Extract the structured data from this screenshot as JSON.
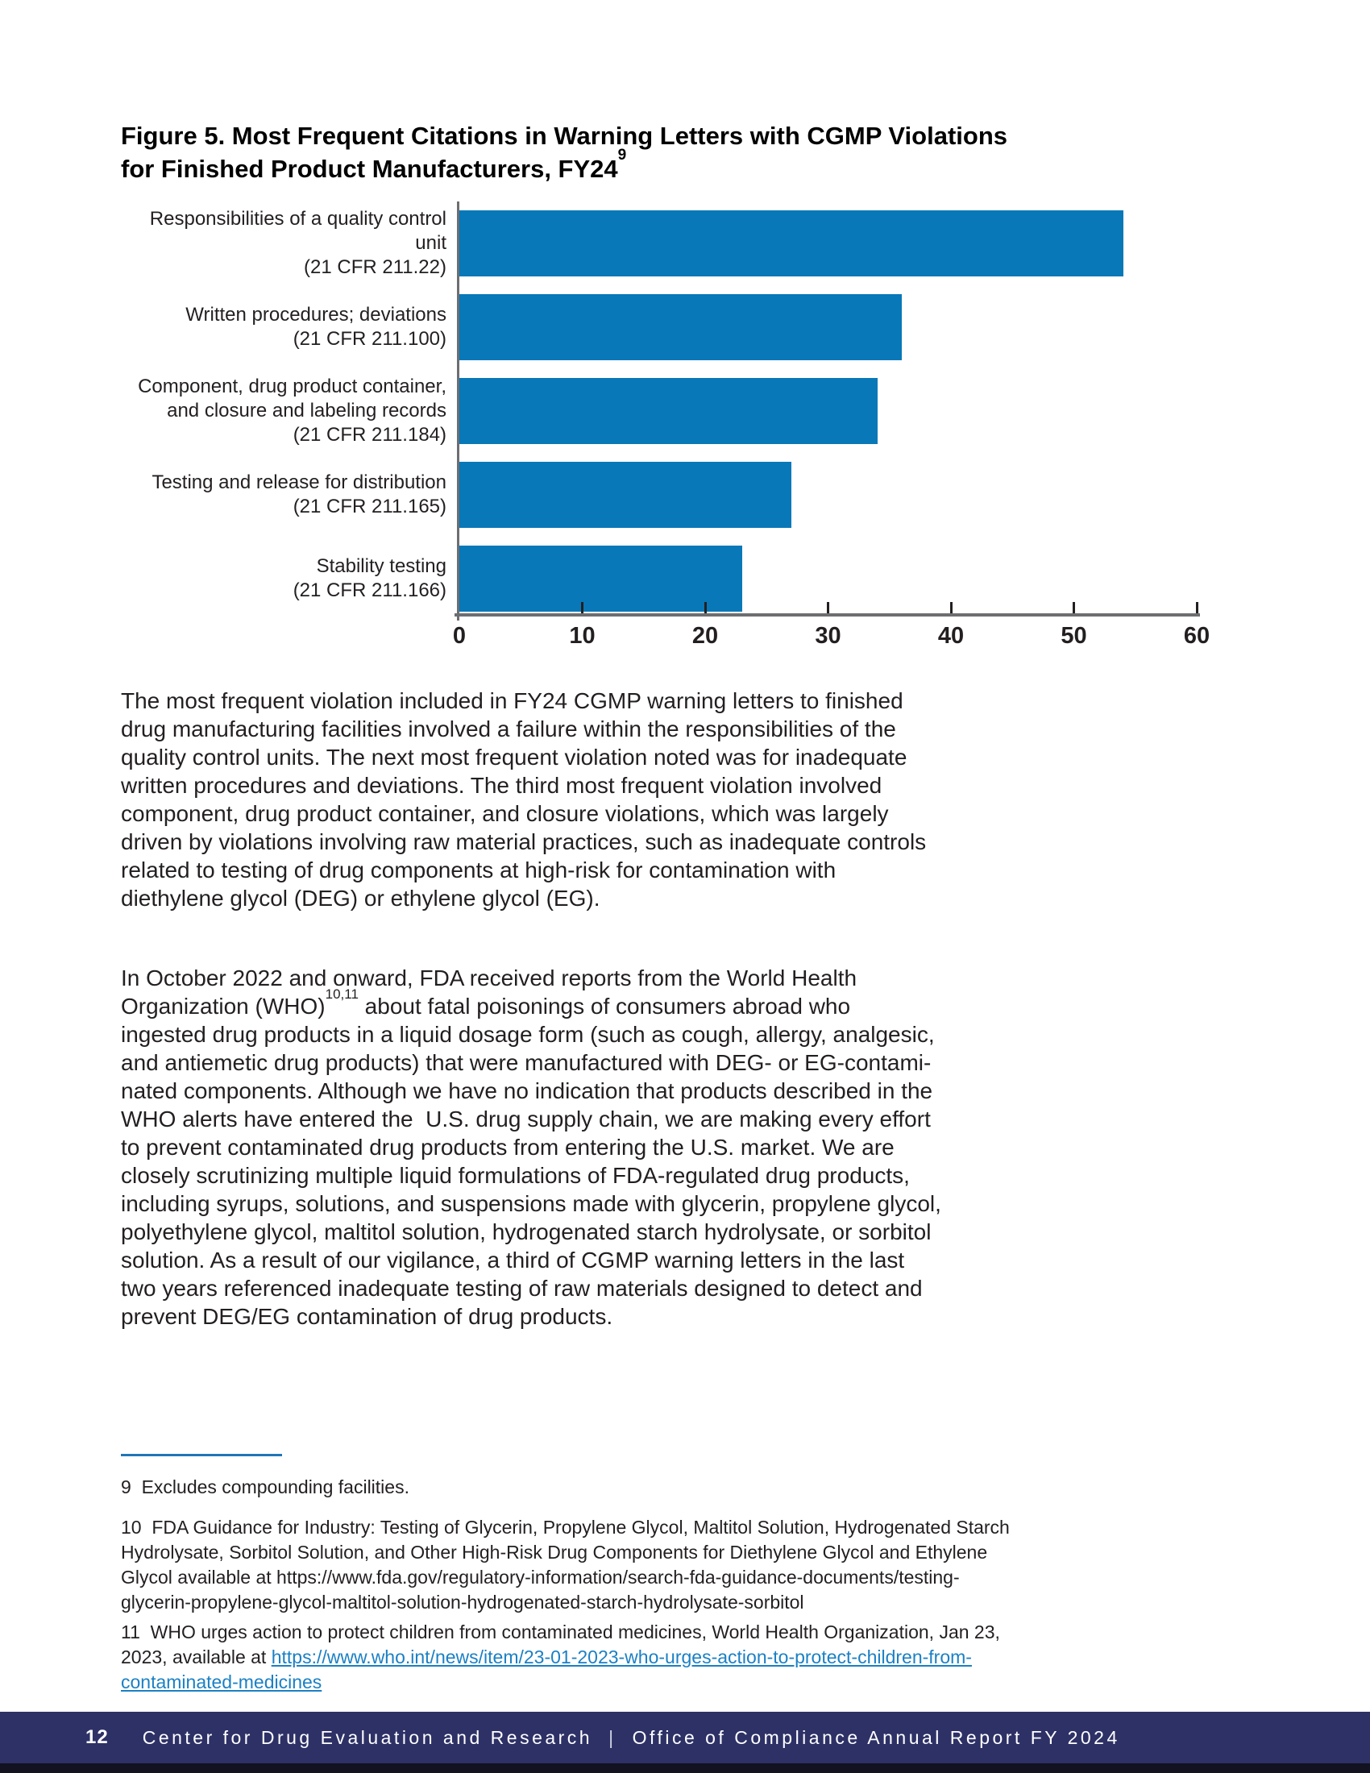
{
  "title": {
    "lines": [
      "Figure 5. Most Frequent Citations in Warning Letters with CGMP Violations",
      "for Finished Product Manufacturers, FY24^{9}"
    ]
  },
  "chart_data": {
    "type": "bar",
    "orientation": "horizontal",
    "title": "Figure 5. Most Frequent Citations in Warning Letters with CGMP Violations for Finished Product Manufacturers, FY24",
    "categories": [
      {
        "label_lines": [
          "Responsibilities of a quality control unit",
          "(21 CFR 211.22)"
        ],
        "value": 54
      },
      {
        "label_lines": [
          "Written procedures; deviations",
          "(21 CFR 211.100)"
        ],
        "value": 36
      },
      {
        "label_lines": [
          "Component, drug product container,",
          "and closure and labeling records",
          "(21 CFR 211.184)"
        ],
        "value": 34
      },
      {
        "label_lines": [
          "Testing and release for distribution",
          "(21 CFR 211.165)"
        ],
        "value": 27
      },
      {
        "label_lines": [
          "Stability testing",
          "(21 CFR 211.166)"
        ],
        "value": 23
      }
    ],
    "xlabel": "",
    "ylabel": "",
    "xlim": [
      0,
      60
    ],
    "x_ticks": [
      0,
      10,
      20,
      30,
      40,
      50,
      60
    ],
    "grid": false,
    "legend": false,
    "bar_color": "#0878b8",
    "axis_color": "#6d6e71",
    "tick_color": "#231f20"
  },
  "body": {
    "paragraph1_lines": [
      "The most frequent violation included in FY24 CGMP warning letters to finished",
      "drug manufacturing facilities involved a failure within the responsibilities of the",
      "quality control units. The next most frequent violation noted was for inadequate",
      "written procedures and deviations. The third most frequent violation involved",
      "component, drug product container, and closure violations, which was largely",
      "driven by violations involving raw material practices, such as inadequate controls",
      "related to testing of drug components at high-risk for contamination with",
      "diethylene glycol (DEG) or ethylene glycol (EG)."
    ],
    "paragraph2_lines": [
      "In October 2022 and onward, FDA received reports from the World Health",
      "Organization (WHO)^{10,11} about fatal poisonings of consumers abroad who",
      "ingested drug products in a liquid dosage form (such as cough, allergy, analgesic,",
      "and antiemetic drug products) that were manufactured with DEG- or EG-contami-",
      "nated components. Although we have no indication that products described in the",
      "WHO alerts have entered the  U.S. drug supply chain, we are making every effort",
      "to prevent contaminated drug products from entering the U.S. market. We are",
      "closely scrutinizing multiple liquid formulations of FDA-regulated drug products,",
      "including syrups, solutions, and suspensions made with glycerin, propylene glycol,",
      "polyethylene glycol, maltitol solution, hydrogenated starch hydrolysate, or sorbitol",
      "solution. As a result of our vigilance, a third of CGMP warning letters in the last",
      "two years referenced inadequate testing of raw materials designed to detect and",
      "prevent DEG/EG contamination of drug products."
    ]
  },
  "footnotes": {
    "fn9_lines": [
      "9  Excludes compounding facilities."
    ],
    "fn10_lines": [
      "10  FDA Guidance for Industry: Testing of Glycerin, Propylene Glycol, Maltitol Solution, Hydrogenated Starch",
      "Hydrolysate, Sorbitol Solution, and Other High-Risk Drug Components for Diethylene Glycol and Ethylene",
      "Glycol available at https://www.fda.gov/regulatory-information/search-fda-guidance-documents/testing-",
      "glycerin-propylene-glycol-maltitol-solution-hydrogenated-starch-hydrolysate-sorbitol"
    ],
    "fn11_lines": [
      "11  WHO urges action to protect children from contaminated medicines, World Health Organization, Jan 23,",
      "2023, available at [[https://www.who.int/news/item/23-01-2023-who-urges-action-to-protect-children-from-]]",
      "[[contaminated-medicines]]"
    ]
  },
  "footer": {
    "page_number": "12",
    "left_text": "Center for Drug Evaluation and Research",
    "separator": "|",
    "right_text": "Office of Compliance Annual Report FY 2024",
    "bar_color": "#2d3166"
  }
}
